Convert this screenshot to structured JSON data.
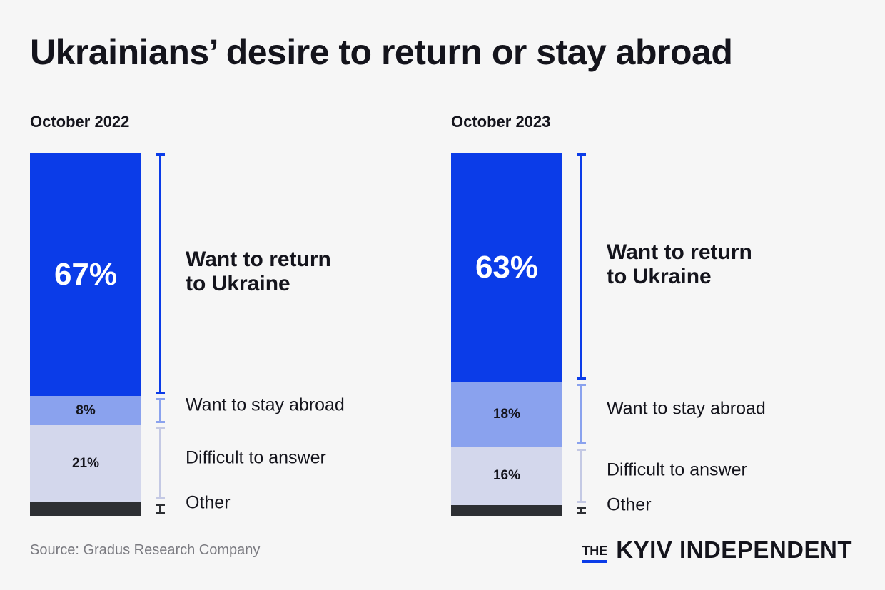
{
  "title": "Ukrainians’ desire to return or stay abroad",
  "source": "Source: Gradus Research Company",
  "brand": {
    "prefix": "THE",
    "name": "KYIV INDEPENDENT"
  },
  "colors": {
    "return": "#0b3ce8",
    "stay": "#8aa2ee",
    "difficult": "#d3d7ec",
    "other": "#2d2f33"
  },
  "chart_data": [
    {
      "type": "bar",
      "stacked": true,
      "title": "October 2022",
      "categories": [
        "Want to return to Ukraine",
        "Want to stay abroad",
        "Difficult to answer",
        "Other"
      ],
      "values": [
        67,
        8,
        21,
        4
      ],
      "value_labels": [
        "67%",
        "8%",
        "21%",
        ""
      ]
    },
    {
      "type": "bar",
      "stacked": true,
      "title": "October 2023",
      "categories": [
        "Want to return to Ukraine",
        "Want to stay abroad",
        "Difficult to answer",
        "Other"
      ],
      "values": [
        63,
        18,
        16,
        3
      ],
      "value_labels": [
        "63%",
        "18%",
        "16%",
        ""
      ]
    }
  ],
  "labels": {
    "return_line1": "Want to return",
    "return_line2": "to Ukraine",
    "stay": "Want to stay abroad",
    "difficult": "Difficult to answer",
    "other": "Other"
  }
}
